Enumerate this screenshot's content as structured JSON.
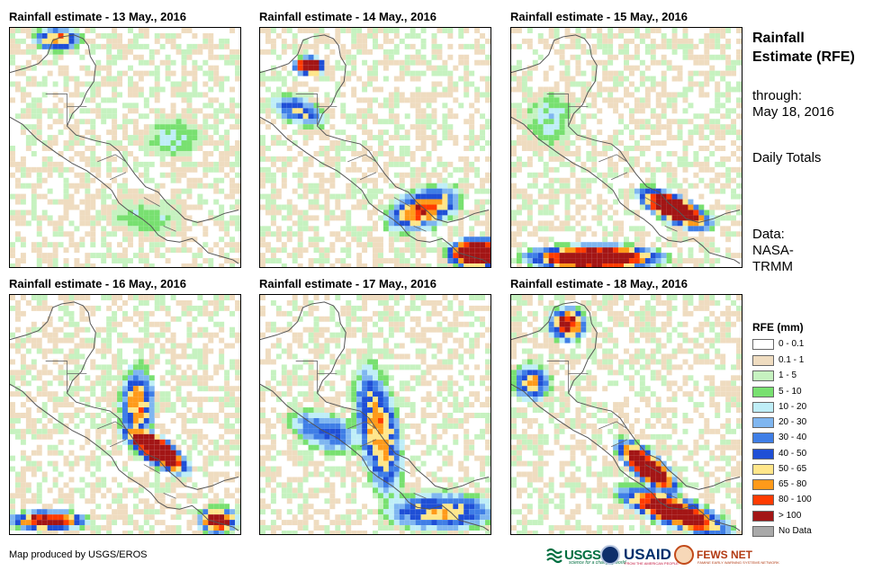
{
  "panels": [
    {
      "title": "Rainfall estimate - 13 May., 2016"
    },
    {
      "title": "Rainfall estimate - 14 May., 2016"
    },
    {
      "title": "Rainfall estimate - 15 May., 2016"
    },
    {
      "title": "Rainfall estimate - 16 May., 2016"
    },
    {
      "title": "Rainfall estimate - 17 May., 2016"
    },
    {
      "title": "Rainfall estimate - 18 May., 2016"
    }
  ],
  "side": {
    "title": "Rainfall Estimate (RFE)",
    "through_label": "through:",
    "through_date": "May 18, 2016",
    "period": "Daily Totals",
    "data_source": "Data: NASA-TRMM"
  },
  "legend": {
    "title": "RFE (mm)",
    "items": [
      {
        "label": "0 - 0.1",
        "color": "#ffffff"
      },
      {
        "label": "0.1 - 1",
        "color": "#efdcc0"
      },
      {
        "label": "1 - 5",
        "color": "#c6f2c0"
      },
      {
        "label": "5 - 10",
        "color": "#78e070"
      },
      {
        "label": "10 - 20",
        "color": "#bfeef7"
      },
      {
        "label": "20 - 30",
        "color": "#7fb6f0"
      },
      {
        "label": "30 - 40",
        "color": "#3f7ee6"
      },
      {
        "label": "40 - 50",
        "color": "#1f4fd6"
      },
      {
        "label": "50 - 65",
        "color": "#ffe68a"
      },
      {
        "label": "65 - 80",
        "color": "#ff9a1a"
      },
      {
        "label": "80 - 100",
        "color": "#ff3b00"
      },
      {
        "label": "> 100",
        "color": "#a31515"
      },
      {
        "label": "No Data",
        "color": "#a9a9a9"
      }
    ]
  },
  "footer": {
    "credit": "Map produced by USGS/EROS",
    "logos": {
      "usgs": "USGS",
      "usgs_tagline": "science for a changing world",
      "usaid": "USAID",
      "usaid_tagline": "FROM THE AMERICAN PEOPLE",
      "fews": "FEWS NET",
      "fews_tagline": "FAMINE EARLY WARNING SYSTEMS NETWORK"
    }
  }
}
